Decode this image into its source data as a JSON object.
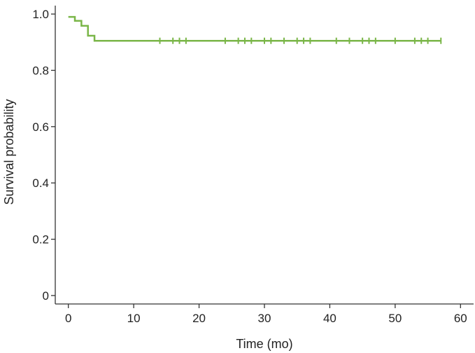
{
  "chart_data": {
    "type": "line",
    "title": "",
    "xlabel": "Time (mo)",
    "ylabel": "Survival probability",
    "xlim": [
      -2,
      62
    ],
    "ylim": [
      -0.03,
      1.03
    ],
    "x_ticks": [
      0,
      10,
      20,
      30,
      40,
      50,
      60
    ],
    "x_tick_labels": [
      "0",
      "10",
      "20",
      "30",
      "40",
      "50",
      "60"
    ],
    "y_ticks": [
      0,
      0.2,
      0.4,
      0.6,
      0.8,
      1.0
    ],
    "y_tick_labels": [
      "0",
      "0.2",
      "0.4",
      "0.6",
      "0.8",
      "1.0"
    ],
    "grid": false,
    "line_color": "#7ab648",
    "series": [
      {
        "step": true,
        "x": [
          0,
          1,
          2,
          3,
          4,
          57
        ],
        "y": [
          0.99,
          0.976,
          0.958,
          0.923,
          0.905,
          0.905
        ],
        "censor_marks_x": [
          14,
          16,
          17,
          18,
          24,
          26,
          27,
          28,
          30,
          31,
          33,
          35,
          36,
          37,
          41,
          43,
          45,
          46,
          47,
          50,
          53,
          54,
          55,
          57
        ]
      }
    ]
  }
}
